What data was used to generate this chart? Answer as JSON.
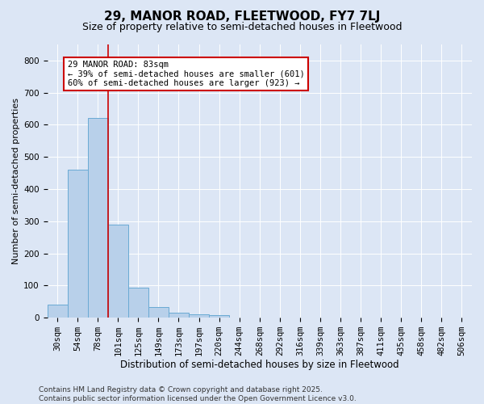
{
  "title": "29, MANOR ROAD, FLEETWOOD, FY7 7LJ",
  "subtitle": "Size of property relative to semi-detached houses in Fleetwood",
  "xlabel": "Distribution of semi-detached houses by size in Fleetwood",
  "ylabel": "Number of semi-detached properties",
  "categories": [
    "30sqm",
    "54sqm",
    "78sqm",
    "101sqm",
    "125sqm",
    "149sqm",
    "173sqm",
    "197sqm",
    "220sqm",
    "244sqm",
    "268sqm",
    "292sqm",
    "316sqm",
    "339sqm",
    "363sqm",
    "387sqm",
    "411sqm",
    "435sqm",
    "458sqm",
    "482sqm",
    "506sqm"
  ],
  "values": [
    40,
    460,
    620,
    290,
    93,
    33,
    15,
    10,
    7,
    0,
    0,
    0,
    0,
    0,
    0,
    0,
    0,
    0,
    0,
    0,
    0
  ],
  "bar_color": "#b8d0ea",
  "bar_edgecolor": "#6aaad4",
  "vline_x": 2.5,
  "vline_color": "#cc0000",
  "annotation_text": "29 MANOR ROAD: 83sqm\n← 39% of semi-detached houses are smaller (601)\n60% of semi-detached houses are larger (923) →",
  "annotation_box_color": "#ffffff",
  "annotation_box_edgecolor": "#cc0000",
  "ylim": [
    0,
    850
  ],
  "yticks": [
    0,
    100,
    200,
    300,
    400,
    500,
    600,
    700,
    800
  ],
  "background_color": "#dce6f5",
  "plot_background_color": "#dce6f5",
  "footer_text": "Contains HM Land Registry data © Crown copyright and database right 2025.\nContains public sector information licensed under the Open Government Licence v3.0.",
  "title_fontsize": 11,
  "subtitle_fontsize": 9,
  "xlabel_fontsize": 8.5,
  "ylabel_fontsize": 8,
  "annotation_fontsize": 7.5,
  "footer_fontsize": 6.5,
  "grid_color": "#ffffff",
  "tick_fontsize": 7.5
}
